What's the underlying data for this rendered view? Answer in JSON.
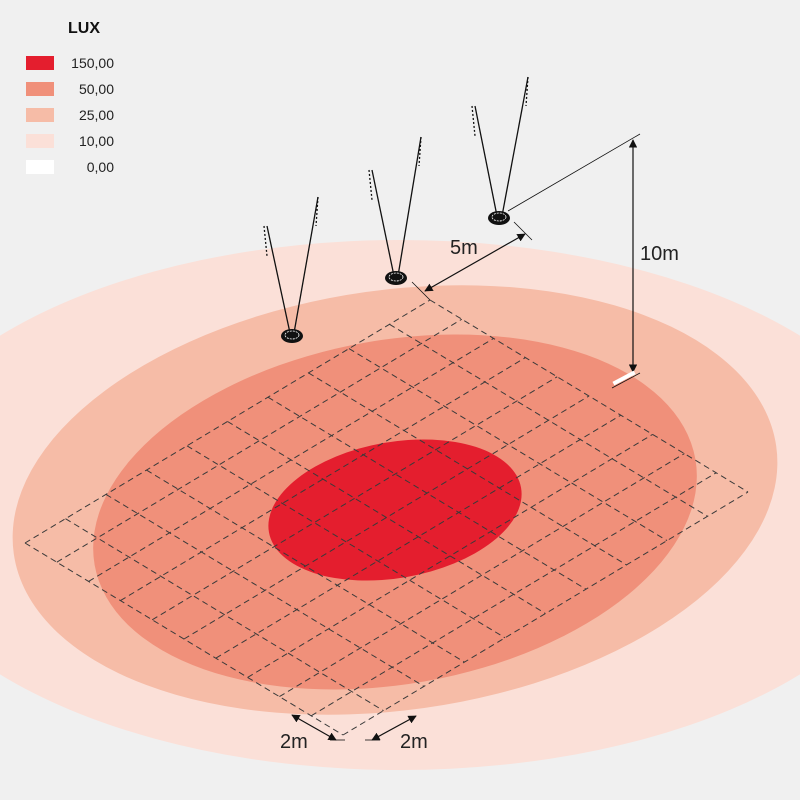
{
  "legend": {
    "title": "LUX",
    "items": [
      {
        "label": "150,00",
        "color": "#e41e2e"
      },
      {
        "label": "50,00",
        "color": "#f0907a"
      },
      {
        "label": "25,00",
        "color": "#f6bca7"
      },
      {
        "label": "10,00",
        "color": "#fbe0d8"
      },
      {
        "label": "0,00",
        "color": "#ffffff"
      }
    ]
  },
  "dimensions": {
    "pole_spacing": "5m",
    "mount_height": "10m",
    "grid_x": "2m",
    "grid_y": "2m"
  },
  "colors": {
    "background": "#f0f0f0",
    "line": "#222222"
  }
}
